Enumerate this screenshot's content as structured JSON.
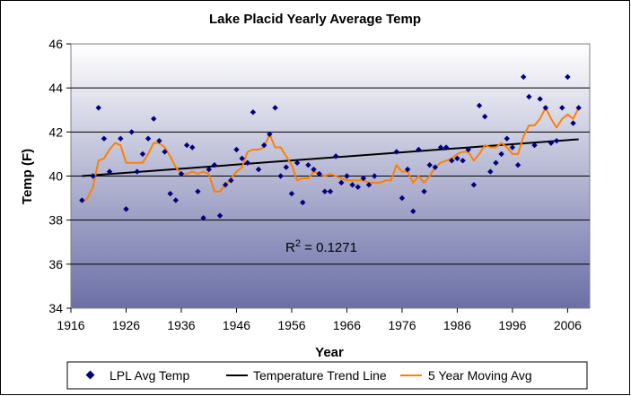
{
  "chart_data": {
    "type": "scatter",
    "title": "Lake Placid Yearly Average Temp",
    "xlabel": "Year",
    "ylabel": "Temp (F)",
    "xlim": [
      1916,
      2010
    ],
    "ylim": [
      34,
      46
    ],
    "x_ticks": [
      1916,
      1926,
      1936,
      1946,
      1956,
      1966,
      1976,
      1986,
      1996,
      2006
    ],
    "y_ticks": [
      34,
      36,
      38,
      40,
      42,
      44,
      46
    ],
    "grid": "horizontal",
    "legend_position": "bottom",
    "annotation": {
      "base": "R",
      "sup": "2",
      "value": " = 0.1271"
    },
    "colors": {
      "scatter": "#00007f",
      "trend": "#000000",
      "moving_avg": "#ff7f00",
      "plot_bg_top": "#ffffff",
      "plot_bg_bottom": "#6b6fa6",
      "frame_bg": "#ffffff"
    },
    "series": [
      {
        "name": "LPL Avg Temp",
        "kind": "scatter",
        "x": [
          1918,
          1920,
          1921,
          1922,
          1923,
          1925,
          1926,
          1927,
          1928,
          1929,
          1930,
          1931,
          1932,
          1933,
          1934,
          1935,
          1936,
          1937,
          1938,
          1939,
          1940,
          1941,
          1942,
          1943,
          1944,
          1945,
          1946,
          1947,
          1948,
          1949,
          1950,
          1951,
          1952,
          1953,
          1954,
          1955,
          1956,
          1957,
          1958,
          1959,
          1960,
          1961,
          1962,
          1963,
          1964,
          1965,
          1966,
          1967,
          1968,
          1969,
          1970,
          1971,
          1975,
          1976,
          1977,
          1978,
          1979,
          1980,
          1981,
          1982,
          1983,
          1984,
          1985,
          1986,
          1987,
          1988,
          1989,
          1990,
          1991,
          1992,
          1993,
          1994,
          1995,
          1996,
          1997,
          1998,
          1999,
          2000,
          2001,
          2002,
          2003,
          2004,
          2005,
          2006,
          2007,
          2008
        ],
        "y": [
          38.9,
          40.0,
          43.1,
          41.7,
          40.2,
          41.7,
          38.5,
          42.0,
          40.2,
          41.0,
          41.7,
          42.6,
          41.6,
          41.1,
          39.2,
          38.9,
          40.1,
          41.4,
          41.3,
          39.3,
          38.1,
          40.3,
          40.5,
          38.2,
          39.6,
          39.8,
          41.2,
          40.8,
          40.6,
          42.9,
          40.3,
          41.4,
          41.9,
          43.1,
          40.0,
          40.4,
          39.2,
          40.6,
          38.8,
          40.5,
          40.3,
          40.1,
          39.3,
          39.3,
          40.9,
          39.7,
          40.0,
          39.6,
          39.5,
          39.9,
          39.6,
          40.0,
          41.1,
          39.0,
          40.3,
          38.4,
          41.2,
          39.3,
          40.5,
          40.4,
          41.3,
          41.3,
          40.7,
          40.8,
          40.7,
          41.2,
          39.6,
          43.2,
          42.7,
          40.2,
          40.6,
          41.0,
          41.7,
          41.3,
          40.5,
          44.5,
          43.6,
          41.4,
          43.5,
          43.1,
          41.5,
          41.6,
          43.1,
          44.5,
          42.4,
          43.1
        ]
      },
      {
        "name": "Temperature Trend Line",
        "kind": "line",
        "x": [
          1918,
          2008
        ],
        "y": [
          40.0,
          41.67
        ]
      },
      {
        "name": "5 Year Moving Avg",
        "kind": "line",
        "x": [
          1918,
          1919,
          1920,
          1921,
          1922,
          1923,
          1924,
          1925,
          1926,
          1927,
          1928,
          1929,
          1930,
          1931,
          1932,
          1933,
          1934,
          1935,
          1936,
          1937,
          1938,
          1939,
          1940,
          1941,
          1942,
          1943,
          1944,
          1945,
          1946,
          1947,
          1948,
          1949,
          1950,
          1951,
          1952,
          1953,
          1954,
          1955,
          1956,
          1957,
          1958,
          1959,
          1960,
          1961,
          1962,
          1963,
          1964,
          1965,
          1966,
          1967,
          1968,
          1969,
          1970,
          1971,
          1972,
          1973,
          1974,
          1975,
          1976,
          1977,
          1978,
          1979,
          1980,
          1981,
          1982,
          1983,
          1984,
          1985,
          1986,
          1987,
          1988,
          1989,
          1990,
          1991,
          1992,
          1993,
          1994,
          1995,
          1996,
          1997,
          1998,
          1999,
          2000,
          2001,
          2002,
          2003,
          2004,
          2005,
          2006,
          2007,
          2008
        ],
        "y": [
          38.8,
          39.0,
          39.5,
          40.7,
          40.8,
          41.2,
          41.5,
          41.4,
          40.6,
          40.6,
          40.6,
          40.6,
          41.0,
          41.5,
          41.5,
          41.3,
          40.9,
          40.4,
          40.1,
          40.1,
          40.2,
          40.1,
          40.2,
          40.1,
          39.3,
          39.3,
          39.6,
          39.9,
          40.2,
          40.4,
          41.1,
          41.2,
          41.2,
          41.3,
          41.9,
          41.3,
          41.3,
          40.9,
          40.5,
          39.8,
          39.9,
          39.9,
          40.2,
          40.1,
          40.0,
          40.1,
          40.0,
          39.9,
          39.8,
          39.8,
          39.8,
          39.8,
          39.7,
          39.7,
          39.7,
          39.8,
          39.8,
          40.5,
          40.2,
          40.2,
          39.7,
          40.0,
          39.7,
          40.0,
          40.4,
          40.6,
          40.7,
          40.8,
          41.0,
          41.1,
          41.1,
          40.7,
          41.0,
          41.4,
          41.3,
          41.3,
          41.5,
          41.3,
          41.0,
          41.0,
          41.8,
          42.3,
          42.3,
          42.6,
          43.1,
          42.6,
          42.2,
          42.6,
          42.8,
          42.6,
          43.1
        ]
      }
    ],
    "legend": [
      "LPL Avg Temp",
      "Temperature Trend Line",
      "5 Year Moving Avg"
    ]
  }
}
